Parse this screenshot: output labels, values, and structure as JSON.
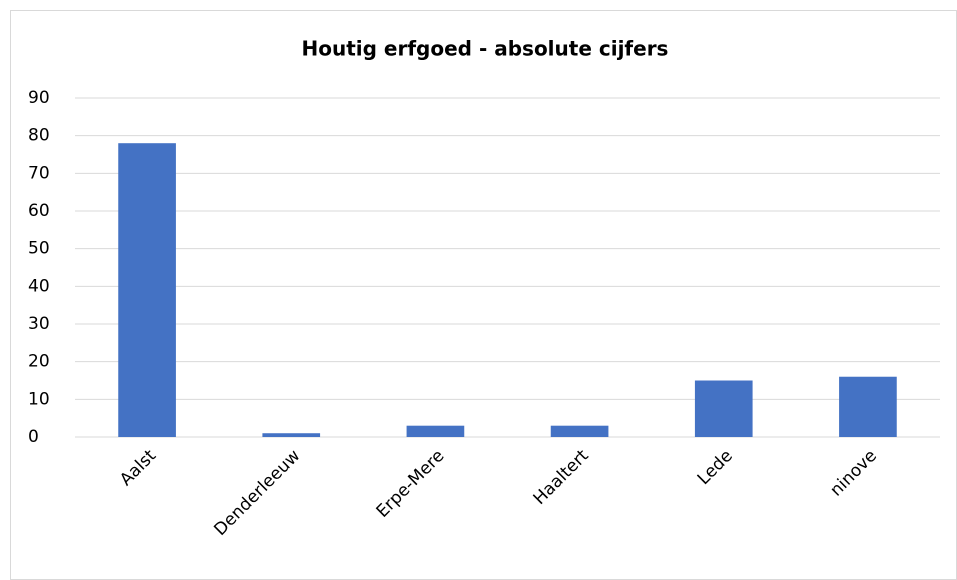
{
  "chart_data": {
    "type": "bar",
    "title": "Houtig erfgoed - absolute cijfers",
    "categories": [
      "Aalst",
      "Denderleeuw",
      "Erpe-Mere",
      "Haaltert",
      "Lede",
      "ninove"
    ],
    "values": [
      78,
      1,
      3,
      3,
      15,
      16
    ],
    "color": "#4472c4",
    "ylim": [
      0,
      90
    ],
    "yticks": [
      0,
      10,
      20,
      30,
      40,
      50,
      60,
      70,
      80,
      90
    ],
    "grid": true
  }
}
